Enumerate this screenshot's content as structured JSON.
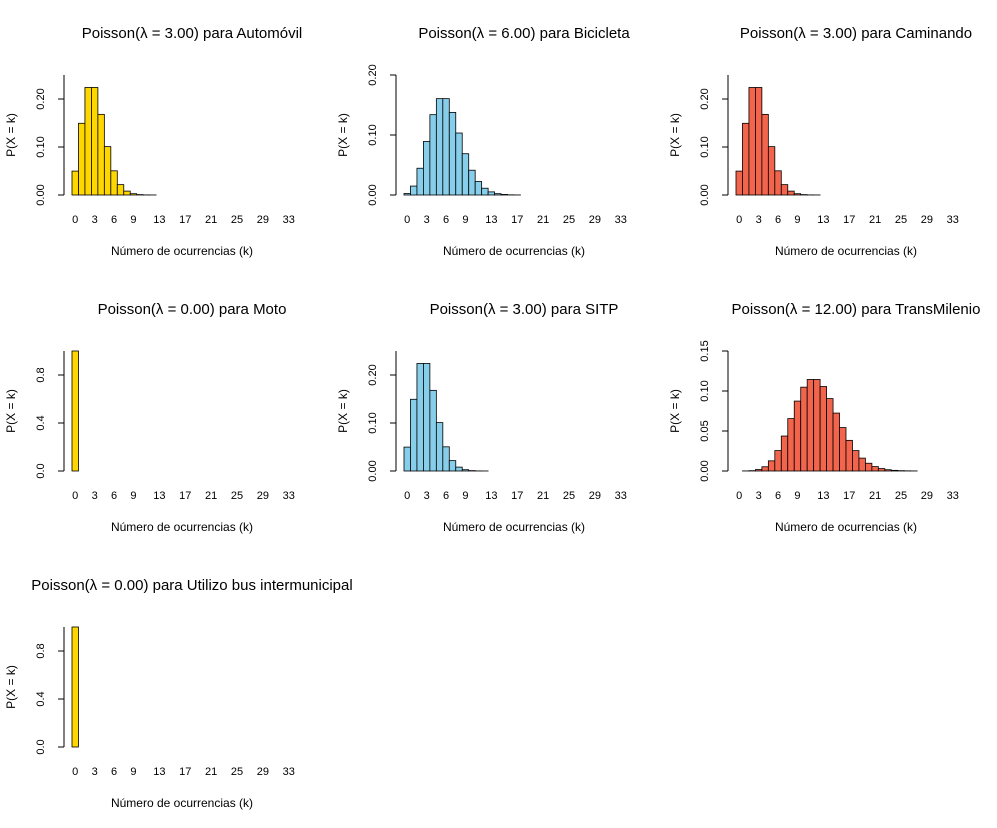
{
  "x_label": "Número de ocurrencias (k)",
  "y_label": "P(X = k)",
  "x_ticks": [
    "0",
    "3",
    "6",
    "9",
    "13",
    "17",
    "21",
    "25",
    "29",
    "33"
  ],
  "colors": {
    "gold": "#FFD700",
    "skyblue": "#87CEEB",
    "tomato": "#F2644B",
    "border": "#000000"
  },
  "chart_data": [
    {
      "type": "bar",
      "title": "Poisson(λ = 3.00) para Automóvil",
      "lambda": 3,
      "color": "#FFD700",
      "x": [
        0,
        1,
        2,
        3,
        4,
        5,
        6,
        7,
        8,
        9,
        10,
        11,
        12,
        13,
        14,
        15,
        16,
        17,
        18,
        19,
        20,
        21,
        22,
        23,
        24,
        25,
        26,
        27,
        28,
        29,
        30,
        31,
        32,
        33
      ],
      "values": [
        0.0498,
        0.1494,
        0.224,
        0.224,
        0.168,
        0.1008,
        0.0504,
        0.0216,
        0.0081,
        0.0027,
        0.0008,
        0.0002,
        0.0001,
        0,
        0,
        0,
        0,
        0,
        0,
        0,
        0,
        0,
        0,
        0,
        0,
        0,
        0,
        0,
        0,
        0,
        0,
        0,
        0,
        0
      ],
      "xlabel": "Número de ocurrencias (k)",
      "ylabel": "P(X = k)",
      "ylim": [
        0,
        0.25
      ],
      "yticks": [
        "0.00",
        "0.10",
        "0.20"
      ]
    },
    {
      "type": "bar",
      "title": "Poisson(λ = 6.00) para Bicicleta",
      "lambda": 6,
      "color": "#87CEEB",
      "x": [
        0,
        1,
        2,
        3,
        4,
        5,
        6,
        7,
        8,
        9,
        10,
        11,
        12,
        13,
        14,
        15,
        16,
        17,
        18,
        19,
        20,
        21,
        22,
        23,
        24,
        25,
        26,
        27,
        28,
        29,
        30,
        31,
        32,
        33
      ],
      "values": [
        0.0025,
        0.0149,
        0.0446,
        0.0892,
        0.1339,
        0.1606,
        0.1606,
        0.1377,
        0.1033,
        0.0688,
        0.0413,
        0.0225,
        0.0113,
        0.0052,
        0.0022,
        0.0009,
        0.0003,
        0.0001,
        0,
        0,
        0,
        0,
        0,
        0,
        0,
        0,
        0,
        0,
        0,
        0,
        0,
        0,
        0,
        0
      ],
      "xlabel": "Número de ocurrencias (k)",
      "ylabel": "P(X = k)",
      "ylim": [
        0,
        0.2
      ],
      "yticks": [
        "0.00",
        "0.10",
        "0.20"
      ]
    },
    {
      "type": "bar",
      "title": "Poisson(λ = 3.00) para Caminando",
      "lambda": 3,
      "color": "#F2644B",
      "x": [
        0,
        1,
        2,
        3,
        4,
        5,
        6,
        7,
        8,
        9,
        10,
        11,
        12,
        13,
        14,
        15,
        16,
        17,
        18,
        19,
        20,
        21,
        22,
        23,
        24,
        25,
        26,
        27,
        28,
        29,
        30,
        31,
        32,
        33
      ],
      "values": [
        0.0498,
        0.1494,
        0.224,
        0.224,
        0.168,
        0.1008,
        0.0504,
        0.0216,
        0.0081,
        0.0027,
        0.0008,
        0.0002,
        0.0001,
        0,
        0,
        0,
        0,
        0,
        0,
        0,
        0,
        0,
        0,
        0,
        0,
        0,
        0,
        0,
        0,
        0,
        0,
        0,
        0,
        0
      ],
      "xlabel": "Número de ocurrencias (k)",
      "ylabel": "P(X = k)",
      "ylim": [
        0,
        0.25
      ],
      "yticks": [
        "0.00",
        "0.10",
        "0.20"
      ]
    },
    {
      "type": "bar",
      "title": "Poisson(λ = 0.00) para Moto",
      "lambda": 0,
      "color": "#FFD700",
      "x": [
        0,
        1,
        2,
        3,
        4,
        5,
        6,
        7,
        8,
        9,
        10,
        11,
        12,
        13,
        14,
        15,
        16,
        17,
        18,
        19,
        20,
        21,
        22,
        23,
        24,
        25,
        26,
        27,
        28,
        29,
        30,
        31,
        32,
        33
      ],
      "values": [
        1,
        0,
        0,
        0,
        0,
        0,
        0,
        0,
        0,
        0,
        0,
        0,
        0,
        0,
        0,
        0,
        0,
        0,
        0,
        0,
        0,
        0,
        0,
        0,
        0,
        0,
        0,
        0,
        0,
        0,
        0,
        0,
        0,
        0
      ],
      "xlabel": "Número de ocurrencias (k)",
      "ylabel": "P(X = k)",
      "ylim": [
        0,
        1
      ],
      "yticks": [
        "0.0",
        "0.4",
        "0.8"
      ]
    },
    {
      "type": "bar",
      "title": "Poisson(λ = 3.00) para SITP",
      "lambda": 3,
      "color": "#87CEEB",
      "x": [
        0,
        1,
        2,
        3,
        4,
        5,
        6,
        7,
        8,
        9,
        10,
        11,
        12,
        13,
        14,
        15,
        16,
        17,
        18,
        19,
        20,
        21,
        22,
        23,
        24,
        25,
        26,
        27,
        28,
        29,
        30,
        31,
        32,
        33
      ],
      "values": [
        0.0498,
        0.1494,
        0.224,
        0.224,
        0.168,
        0.1008,
        0.0504,
        0.0216,
        0.0081,
        0.0027,
        0.0008,
        0.0002,
        0.0001,
        0,
        0,
        0,
        0,
        0,
        0,
        0,
        0,
        0,
        0,
        0,
        0,
        0,
        0,
        0,
        0,
        0,
        0,
        0,
        0,
        0
      ],
      "xlabel": "Número de ocurrencias (k)",
      "ylabel": "P(X = k)",
      "ylim": [
        0,
        0.25
      ],
      "yticks": [
        "0.00",
        "0.10",
        "0.20"
      ]
    },
    {
      "type": "bar",
      "title": "Poisson(λ = 12.00) para TransMilenio",
      "lambda": 12,
      "color": "#F2644B",
      "x": [
        0,
        1,
        2,
        3,
        4,
        5,
        6,
        7,
        8,
        9,
        10,
        11,
        12,
        13,
        14,
        15,
        16,
        17,
        18,
        19,
        20,
        21,
        22,
        23,
        24,
        25,
        26,
        27,
        28,
        29,
        30,
        31,
        32,
        33
      ],
      "values": [
        0.0,
        0.0001,
        0.0004,
        0.0018,
        0.0053,
        0.0127,
        0.0255,
        0.0437,
        0.0655,
        0.0874,
        0.1048,
        0.1144,
        0.1144,
        0.1056,
        0.0905,
        0.0724,
        0.0543,
        0.0383,
        0.0255,
        0.0161,
        0.0097,
        0.0055,
        0.003,
        0.0016,
        0.0008,
        0.0004,
        0.0002,
        0.0001,
        0,
        0,
        0,
        0,
        0,
        0
      ],
      "xlabel": "Número de ocurrencias (k)",
      "ylabel": "P(X = k)",
      "ylim": [
        0,
        0.15
      ],
      "yticks": [
        "0.00",
        "0.05",
        "0.10",
        "0.15"
      ]
    },
    {
      "type": "bar",
      "title": "Poisson(λ = 0.00) para Utilizo bus intermunicipal",
      "lambda": 0,
      "color": "#FFD700",
      "x": [
        0,
        1,
        2,
        3,
        4,
        5,
        6,
        7,
        8,
        9,
        10,
        11,
        12,
        13,
        14,
        15,
        16,
        17,
        18,
        19,
        20,
        21,
        22,
        23,
        24,
        25,
        26,
        27,
        28,
        29,
        30,
        31,
        32,
        33
      ],
      "values": [
        1,
        0,
        0,
        0,
        0,
        0,
        0,
        0,
        0,
        0,
        0,
        0,
        0,
        0,
        0,
        0,
        0,
        0,
        0,
        0,
        0,
        0,
        0,
        0,
        0,
        0,
        0,
        0,
        0,
        0,
        0,
        0,
        0,
        0
      ],
      "xlabel": "Número de ocurrencias (k)",
      "ylabel": "P(X = k)",
      "ylim": [
        0,
        1
      ],
      "yticks": [
        "0.0",
        "0.4",
        "0.8"
      ]
    }
  ]
}
